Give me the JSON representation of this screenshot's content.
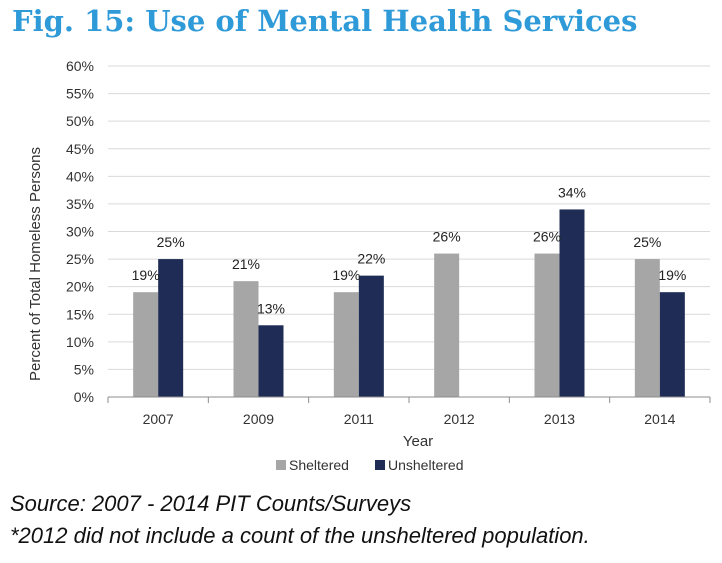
{
  "title": "Fig. 15: Use of Mental Health Services",
  "chart_data": {
    "type": "bar",
    "categories": [
      "2007",
      "2009",
      "2011",
      "2012",
      "2013",
      "2014"
    ],
    "series": [
      {
        "name": "Sheltered",
        "values": [
          19,
          21,
          19,
          26,
          26,
          25
        ],
        "labels": [
          "19%",
          "21%",
          "19%",
          "26%",
          "26%",
          "25%"
        ],
        "color": "#a6a6a6"
      },
      {
        "name": "Unsheltered",
        "values": [
          25,
          13,
          22,
          null,
          34,
          19
        ],
        "labels": [
          "25%",
          "13%",
          "22%",
          "",
          "34%",
          "19%"
        ],
        "color": "#1f2d56"
      }
    ],
    "ylim": [
      0,
      60
    ],
    "yticks": [
      "0%",
      "5%",
      "10%",
      "15%",
      "20%",
      "25%",
      "30%",
      "35%",
      "40%",
      "45%",
      "50%",
      "55%",
      "60%"
    ],
    "xlabel": "Year",
    "ylabel": "Percent of Total Homeless Persons",
    "grid": true,
    "legend": "bottom"
  },
  "source": "Source: 2007 - 2014 PIT Counts/Surveys",
  "note": "*2012 did not include a count of the unsheltered population."
}
